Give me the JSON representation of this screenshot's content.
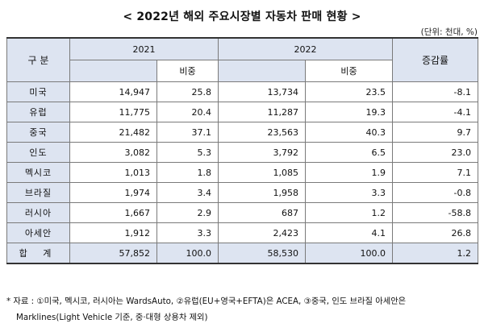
{
  "title": "< 2022년 해외 주요시장별 자동차 판매 현황 >",
  "unit": "(단위: 천대, %)",
  "headers": {
    "category": "구  분",
    "year1": "2021",
    "year2": "2022",
    "share": "비중",
    "change": "증감률"
  },
  "rows": [
    {
      "name": "미국",
      "v2021": "14,947",
      "s2021": "25.8",
      "v2022": "13,734",
      "s2022": "23.5",
      "change": "-8.1"
    },
    {
      "name": "유럽",
      "v2021": "11,775",
      "s2021": "20.4",
      "v2022": "11,287",
      "s2022": "19.3",
      "change": "-4.1"
    },
    {
      "name": "중국",
      "v2021": "21,482",
      "s2021": "37.1",
      "v2022": "23,563",
      "s2022": "40.3",
      "change": "9.7"
    },
    {
      "name": "인도",
      "v2021": "3,082",
      "s2021": "5.3",
      "v2022": "3,792",
      "s2022": "6.5",
      "change": "23.0"
    },
    {
      "name": "멕시코",
      "v2021": "1,013",
      "s2021": "1.8",
      "v2022": "1,085",
      "s2022": "1.9",
      "change": "7.1"
    },
    {
      "name": "브라질",
      "v2021": "1,974",
      "s2021": "3.4",
      "v2022": "1,958",
      "s2022": "3.3",
      "change": "-0.8"
    },
    {
      "name": "러시아",
      "v2021": "1,667",
      "s2021": "2.9",
      "v2022": "687",
      "s2022": "1.2",
      "change": "-58.8"
    },
    {
      "name": "아세안",
      "v2021": "1,912",
      "s2021": "3.3",
      "v2022": "2,423",
      "s2022": "4.1",
      "change": "26.8"
    }
  ],
  "total": {
    "name": "합  계",
    "v2021": "57,852",
    "s2021": "100.0",
    "v2022": "58,530",
    "s2022": "100.0",
    "change": "1.2"
  },
  "note": {
    "line1": "* 자료 : ①미국, 멕시코, 러시아는 WardsAuto, ②유럽(EU+영국+EFTA)은 ACEA, ③중국, 인도 브라질 아세안은",
    "line2": "Marklines(Light Vehicle 기준, 중·대형 상용차 제외)"
  }
}
